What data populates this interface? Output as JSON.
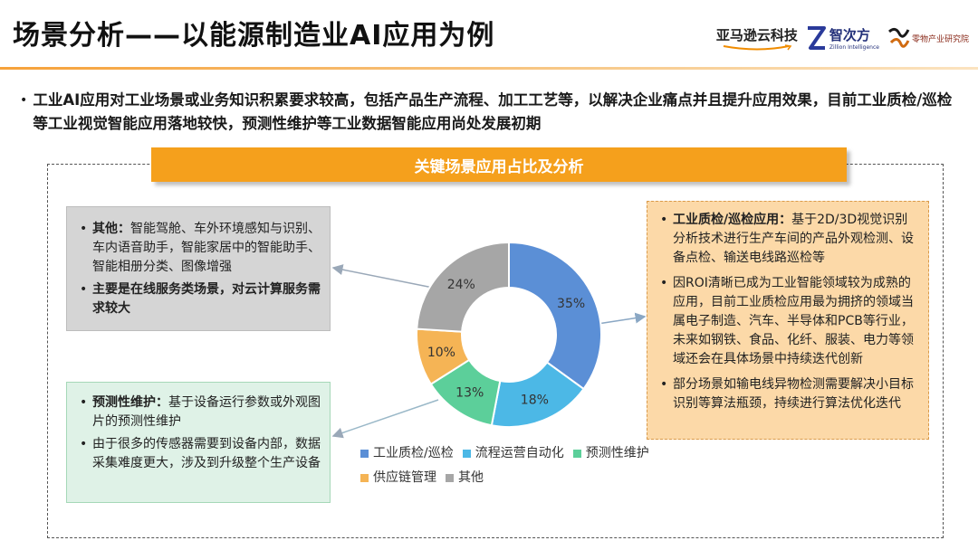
{
  "header": {
    "title": "场景分析——以能源制造业AI应用为例",
    "logos": {
      "amazon": "亚马逊云科技",
      "zhicifang_cn": "智次方",
      "zhicifang_en": "Zillion Intelligence",
      "jingbang_en": "零物产业研究院"
    }
  },
  "summary": "工业AI应用对工业场景或业务知识积累要求较高，包括产品生产流程、加工工艺等，以解决企业痛点并且提升应用效果，目前工业质检/巡检等工业视觉智能应用落地较快，预测性维护等工业数据智能应用尚处发展初期",
  "banner": "关键场景应用占比及分析",
  "box_gray": {
    "item1_bold": "其他：",
    "item1_text": "智能驾舱、车外环境感知与识别、车内语音助手，智能家居中的智能助手、智能相册分类、图像增强",
    "item2_bold": "主要是在线服务类场景，对云计算服务需求较大"
  },
  "box_green": {
    "item1_bold": "预测性维护：",
    "item1_text": "基于设备运行参数或外观图片的预测性维护",
    "item2_text": "由于很多的传感器需要到设备内部，数据采集难度更大，涉及到升级整个生产设备"
  },
  "box_orange": {
    "item1_bold": "工业质检/巡检应用：",
    "item1_text": "基于2D/3D视觉识别分析技术进行生产车间的产品外观检测、设备点检、输送电线路巡检等",
    "item2_text": "因ROI清晰已成为工业智能领域较为成熟的应用，目前工业质检应用最为拥挤的领域当属电子制造、汽车、半导体和PCB等行业，未来如钢铁、食品、化纤、服装、电力等领域还会在具体场景中持续迭代创新",
    "item3_text": "部分场景如输电线异物检测需要解决小目标识别等算法瓶颈，持续进行算法优化迭代"
  },
  "chart_data": {
    "type": "pie",
    "donut": true,
    "title": "",
    "categories": [
      "工业质检/巡检",
      "流程运营自动化",
      "预测性维护",
      "供应链管理",
      "其他"
    ],
    "values": [
      35,
      18,
      13,
      10,
      24
    ],
    "labels": [
      "35%",
      "18%",
      "13%",
      "10%",
      "24%"
    ],
    "colors": [
      "#5b8fd6",
      "#4cb8e6",
      "#5ccf9a",
      "#f5b455",
      "#a6a6a6"
    ],
    "legend_position": "bottom"
  }
}
